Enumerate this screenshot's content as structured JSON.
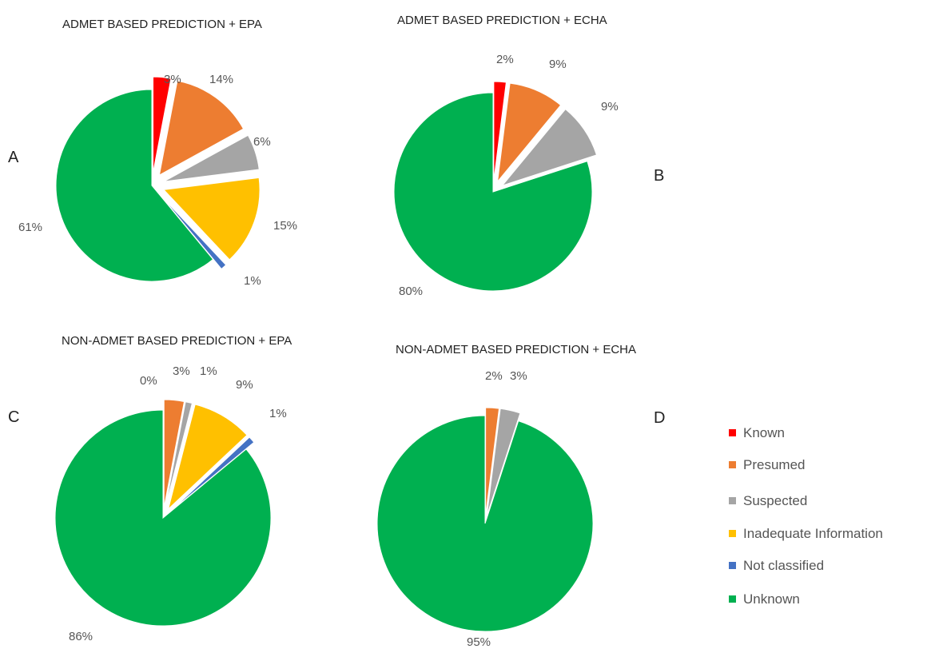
{
  "figure": {
    "legend": {
      "position": "right",
      "items": [
        {
          "label": "Known",
          "color": "#ff0000"
        },
        {
          "label": "Presumed",
          "color": "#ed7d31"
        },
        {
          "label": "Suspected",
          "color": "#a5a5a5"
        },
        {
          "label": "Inadequate Information",
          "color": "#ffc000"
        },
        {
          "label": "Not classified",
          "color": "#4472c4"
        },
        {
          "label": "Unknown",
          "color": "#00b050"
        }
      ]
    }
  },
  "chart_data": [
    {
      "type": "pie",
      "panel": "A",
      "title": "ADMET BASED PREDICTION + EPA",
      "categories": [
        "Known",
        "Presumed",
        "Suspected",
        "Inadequate Information",
        "Not classified",
        "Unknown"
      ],
      "values": [
        3,
        14,
        6,
        15,
        1,
        61
      ],
      "value_labels": [
        "3%",
        "14%",
        "6%",
        "15%",
        "1%",
        "61%"
      ],
      "exploded": true
    },
    {
      "type": "pie",
      "panel": "B",
      "title": "ADMET BASED PREDICTION + ECHA",
      "categories": [
        "Known",
        "Presumed",
        "Suspected",
        "Unknown"
      ],
      "values": [
        2,
        9,
        9,
        80
      ],
      "value_labels": [
        "2%",
        "9%",
        "9%",
        "80%"
      ],
      "exploded": true
    },
    {
      "type": "pie",
      "panel": "C",
      "title": "NON-ADMET BASED PREDICTION + EPA",
      "categories": [
        "Known",
        "Presumed",
        "Suspected",
        "Inadequate Information",
        "Not classified",
        "Unknown"
      ],
      "values": [
        0,
        3,
        1,
        9,
        1,
        86
      ],
      "value_labels": [
        "0%",
        "3%",
        "1%",
        "9%",
        "1%",
        "86%"
      ],
      "exploded": true
    },
    {
      "type": "pie",
      "panel": "D",
      "title": "NON-ADMET BASED PREDICTION + ECHA",
      "categories": [
        "Presumed",
        "Suspected",
        "Unknown"
      ],
      "values": [
        2,
        3,
        95
      ],
      "value_labels": [
        "2%",
        "3%",
        "95%"
      ],
      "exploded": true
    }
  ]
}
